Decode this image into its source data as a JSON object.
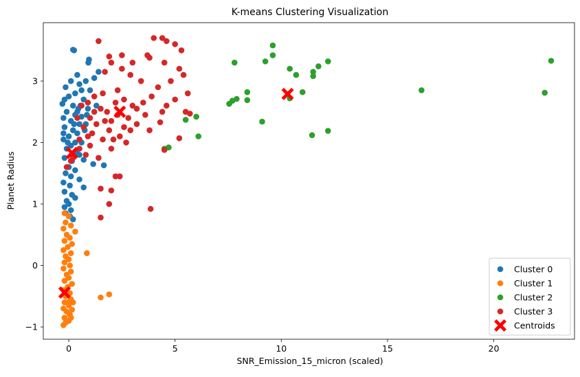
{
  "chart_data": {
    "type": "scatter",
    "title": "K-means Clustering Visualization",
    "xlabel": "SNR_Emission_15_micron (scaled)",
    "ylabel": "Planet Radius",
    "xlim": [
      -1.2,
      23.8
    ],
    "ylim": [
      -1.2,
      3.95
    ],
    "xticks": [
      0,
      5,
      10,
      15,
      20
    ],
    "yticks": [
      -1,
      0,
      1,
      2,
      3
    ],
    "grid": false,
    "legend_position": "bottom-right",
    "series": [
      {
        "name": "Cluster 0",
        "color": "#1f77b4",
        "points": [
          [
            0.2,
            3.51
          ],
          [
            0.25,
            3.5
          ],
          [
            0.95,
            3.35
          ],
          [
            0.92,
            3.3
          ],
          [
            0.4,
            3.1
          ],
          [
            1.4,
            3.15
          ],
          [
            1.2,
            3.05
          ],
          [
            0.8,
            3.0
          ],
          [
            0.1,
            3.0
          ],
          [
            0.5,
            2.95
          ],
          [
            -0.15,
            2.9
          ],
          [
            0.6,
            2.85
          ],
          [
            1.0,
            2.85
          ],
          [
            0.3,
            2.8
          ],
          [
            0.0,
            2.75
          ],
          [
            -0.2,
            2.7
          ],
          [
            0.7,
            2.7
          ],
          [
            1.3,
            2.6
          ],
          [
            -0.3,
            2.63
          ],
          [
            0.2,
            2.6
          ],
          [
            0.45,
            2.55
          ],
          [
            0.9,
            2.55
          ],
          [
            -0.1,
            2.5
          ],
          [
            0.3,
            2.45
          ],
          [
            0.6,
            2.42
          ],
          [
            -0.25,
            2.4
          ],
          [
            0.1,
            2.35
          ],
          [
            0.5,
            2.3
          ],
          [
            0.8,
            2.3
          ],
          [
            -0.2,
            2.25
          ],
          [
            0.2,
            2.2
          ],
          [
            0.4,
            2.15
          ],
          [
            0.0,
            2.1
          ],
          [
            -0.25,
            2.05
          ],
          [
            0.3,
            2.0
          ],
          [
            0.6,
            2.0
          ],
          [
            0.1,
            1.95
          ],
          [
            -0.1,
            1.9
          ],
          [
            0.35,
            1.85
          ],
          [
            0.5,
            1.8
          ],
          [
            -0.2,
            1.75
          ],
          [
            0.15,
            1.7
          ],
          [
            0.7,
            1.72
          ],
          [
            1.15,
            1.65
          ],
          [
            1.65,
            1.63
          ],
          [
            0.0,
            1.6
          ],
          [
            0.3,
            1.55
          ],
          [
            -0.15,
            1.5
          ],
          [
            0.1,
            1.45
          ],
          [
            0.5,
            1.4
          ],
          [
            -0.25,
            1.35
          ],
          [
            0.05,
            1.3
          ],
          [
            0.7,
            1.27
          ],
          [
            -0.2,
            1.2
          ],
          [
            0.15,
            1.15
          ],
          [
            0.3,
            1.1
          ],
          [
            -0.1,
            1.05
          ],
          [
            0.0,
            1.0
          ],
          [
            -0.2,
            0.95
          ],
          [
            0.1,
            0.9
          ],
          [
            -0.15,
            0.85
          ],
          [
            0.05,
            0.8
          ],
          [
            0.2,
            0.75
          ],
          [
            -0.25,
            2.15
          ],
          [
            0.55,
            2.6
          ],
          [
            0.75,
            2.2
          ],
          [
            0.85,
            2.45
          ],
          [
            -0.05,
            2.0
          ],
          [
            0.25,
            2.3
          ],
          [
            0.4,
            2.5
          ]
        ]
      },
      {
        "name": "Cluster 1",
        "color": "#ff7f0e",
        "points": [
          [
            -0.2,
            0.85
          ],
          [
            0.0,
            0.8
          ],
          [
            -0.15,
            0.7
          ],
          [
            0.1,
            0.65
          ],
          [
            -0.25,
            0.6
          ],
          [
            0.3,
            0.55
          ],
          [
            -0.1,
            0.5
          ],
          [
            0.05,
            0.45
          ],
          [
            -0.2,
            0.4
          ],
          [
            0.15,
            0.35
          ],
          [
            -0.05,
            0.3
          ],
          [
            -0.25,
            0.25
          ],
          [
            0.1,
            0.2
          ],
          [
            0.85,
            0.2
          ],
          [
            -0.15,
            0.15
          ],
          [
            0.0,
            0.1
          ],
          [
            -0.2,
            0.05
          ],
          [
            0.05,
            0.0
          ],
          [
            -0.25,
            -0.05
          ],
          [
            0.1,
            -0.1
          ],
          [
            -0.1,
            -0.15
          ],
          [
            0.0,
            -0.2
          ],
          [
            -0.2,
            -0.25
          ],
          [
            0.15,
            -0.3
          ],
          [
            -0.05,
            -0.35
          ],
          [
            -0.25,
            -0.4
          ],
          [
            0.05,
            -0.45
          ],
          [
            1.9,
            -0.47
          ],
          [
            -0.15,
            -0.5
          ],
          [
            1.5,
            -0.52
          ],
          [
            0.1,
            -0.55
          ],
          [
            -0.2,
            -0.6
          ],
          [
            0.2,
            -0.6
          ],
          [
            0.0,
            -0.65
          ],
          [
            -0.25,
            -0.7
          ],
          [
            0.15,
            -0.72
          ],
          [
            -0.1,
            -0.75
          ],
          [
            0.05,
            -0.8
          ],
          [
            -0.2,
            -0.85
          ],
          [
            0.0,
            -0.9
          ],
          [
            -0.15,
            -0.93
          ],
          [
            -0.25,
            -0.97
          ],
          [
            0.1,
            -0.85
          ],
          [
            -0.05,
            -0.6
          ]
        ]
      },
      {
        "name": "Cluster 2",
        "color": "#2ca02c",
        "points": [
          [
            9.6,
            3.58
          ],
          [
            9.6,
            3.42
          ],
          [
            11.75,
            3.24
          ],
          [
            12.2,
            3.32
          ],
          [
            22.7,
            3.33
          ],
          [
            9.25,
            3.32
          ],
          [
            7.8,
            3.3
          ],
          [
            10.4,
            3.2
          ],
          [
            10.7,
            3.1
          ],
          [
            11.5,
            3.15
          ],
          [
            11.5,
            3.08
          ],
          [
            8.4,
            2.82
          ],
          [
            11.0,
            2.82
          ],
          [
            16.6,
            2.85
          ],
          [
            22.4,
            2.81
          ],
          [
            7.9,
            2.71
          ],
          [
            7.7,
            2.68
          ],
          [
            8.4,
            2.69
          ],
          [
            10.4,
            2.72
          ],
          [
            7.55,
            2.63
          ],
          [
            6.0,
            2.42
          ],
          [
            5.5,
            2.37
          ],
          [
            9.1,
            2.34
          ],
          [
            12.2,
            2.19
          ],
          [
            11.45,
            2.12
          ],
          [
            6.1,
            2.1
          ],
          [
            4.7,
            1.92
          ],
          [
            4.5,
            1.9
          ]
        ]
      },
      {
        "name": "Cluster 3",
        "color": "#d62728",
        "points": [
          [
            1.4,
            3.65
          ],
          [
            4.0,
            3.7
          ],
          [
            4.4,
            3.7
          ],
          [
            4.6,
            3.65
          ],
          [
            5.3,
            3.5
          ],
          [
            5.0,
            3.6
          ],
          [
            3.7,
            3.42
          ],
          [
            3.8,
            3.38
          ],
          [
            4.5,
            3.3
          ],
          [
            5.4,
            3.1
          ],
          [
            5.2,
            3.2
          ],
          [
            1.9,
            3.4
          ],
          [
            2.5,
            3.42
          ],
          [
            3.0,
            3.3
          ],
          [
            2.0,
            3.3
          ],
          [
            2.5,
            3.2
          ],
          [
            1.7,
            3.15
          ],
          [
            2.9,
            3.1
          ],
          [
            3.4,
            3.0
          ],
          [
            4.8,
            3.0
          ],
          [
            4.2,
            2.9
          ],
          [
            5.6,
            2.8
          ],
          [
            5.0,
            2.7
          ],
          [
            3.9,
            2.75
          ],
          [
            4.6,
            2.6
          ],
          [
            2.3,
            2.85
          ],
          [
            1.6,
            2.8
          ],
          [
            1.2,
            2.75
          ],
          [
            0.9,
            2.65
          ],
          [
            0.6,
            2.6
          ],
          [
            3.2,
            2.55
          ],
          [
            4.4,
            2.5
          ],
          [
            5.5,
            2.5
          ],
          [
            5.7,
            2.47
          ],
          [
            3.6,
            2.45
          ],
          [
            2.8,
            2.4
          ],
          [
            2.0,
            2.35
          ],
          [
            1.3,
            2.3
          ],
          [
            0.7,
            2.25
          ],
          [
            4.3,
            2.33
          ],
          [
            3.2,
            2.3
          ],
          [
            2.6,
            2.25
          ],
          [
            1.9,
            2.2
          ],
          [
            1.1,
            2.15
          ],
          [
            0.5,
            2.05
          ],
          [
            3.8,
            2.2
          ],
          [
            2.4,
            2.1
          ],
          [
            1.6,
            2.05
          ],
          [
            1.0,
            1.95
          ],
          [
            0.5,
            1.9
          ],
          [
            2.7,
            2.0
          ],
          [
            2.0,
            1.9
          ],
          [
            0.8,
            1.8
          ],
          [
            1.4,
            1.75
          ],
          [
            0.2,
            1.75
          ],
          [
            0.1,
            1.7
          ],
          [
            -0.1,
            1.6
          ],
          [
            5.2,
            2.07
          ],
          [
            4.5,
            1.88
          ],
          [
            1.5,
            1.25
          ],
          [
            2.2,
            1.45
          ],
          [
            2.4,
            1.45
          ],
          [
            2.0,
            1.22
          ],
          [
            1.9,
            1.0
          ],
          [
            3.85,
            0.92
          ],
          [
            1.5,
            0.78
          ],
          [
            1.8,
            2.5
          ],
          [
            2.2,
            2.65
          ],
          [
            2.6,
            2.7
          ],
          [
            3.0,
            2.6
          ],
          [
            1.0,
            2.4
          ],
          [
            1.5,
            2.55
          ],
          [
            2.3,
            2.45
          ],
          [
            3.5,
            2.65
          ],
          [
            0.4,
            2.4
          ],
          [
            0.9,
            2.1
          ],
          [
            1.7,
            2.35
          ],
          [
            2.1,
            2.05
          ],
          [
            1.2,
            2.5
          ],
          [
            2.9,
            2.2
          ]
        ]
      },
      {
        "name": "Centroids",
        "color": "#ff0000",
        "marker": "X",
        "points": [
          [
            -0.2,
            -0.44
          ],
          [
            0.15,
            1.83
          ],
          [
            2.4,
            2.5
          ],
          [
            10.3,
            2.79
          ]
        ]
      }
    ]
  }
}
